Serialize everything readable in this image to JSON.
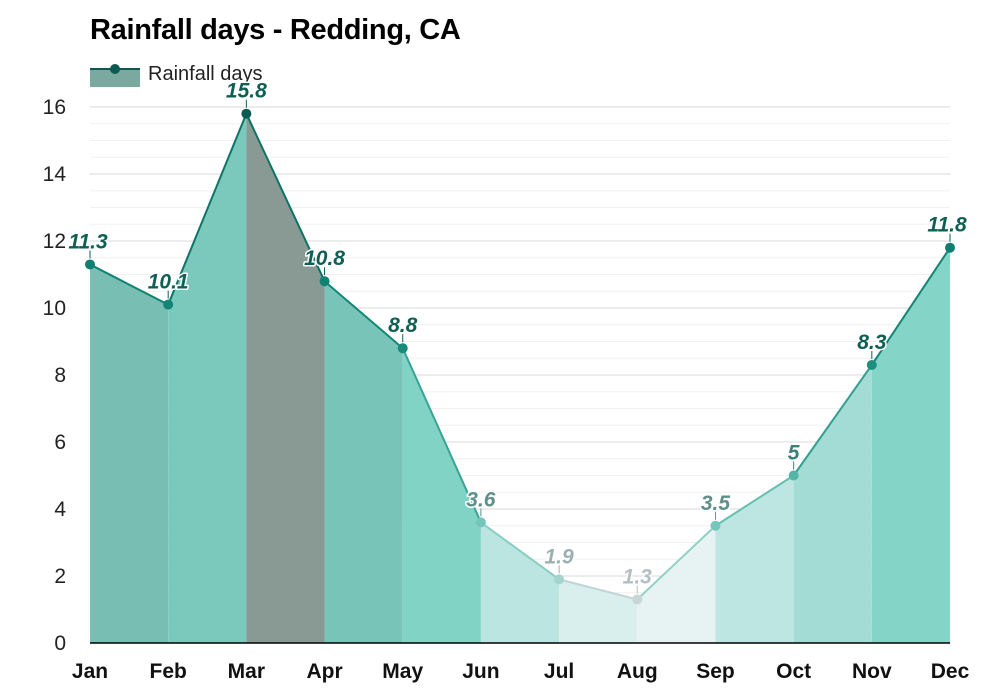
{
  "chart_data": {
    "type": "area",
    "title": "Rainfall days - Redding, CA",
    "xlabel": "",
    "ylabel": "",
    "categories": [
      "Jan",
      "Feb",
      "Mar",
      "Apr",
      "May",
      "Jun",
      "Jul",
      "Aug",
      "Sep",
      "Oct",
      "Nov",
      "Dec"
    ],
    "series": [
      {
        "name": "Rainfall days",
        "values": [
          11.3,
          10.1,
          15.8,
          10.8,
          8.8,
          3.6,
          1.9,
          1.3,
          3.5,
          5,
          8.3,
          11.8
        ]
      }
    ],
    "data_labels": [
      "11.3",
      "10.1",
      "15.8",
      "10.8",
      "8.8",
      "3.6",
      "1.9",
      "1.3",
      "3.5",
      "5",
      "8.3",
      "11.8"
    ],
    "y_ticks": [
      "0",
      "2",
      "4",
      "6",
      "8",
      "10",
      "12",
      "14",
      "16"
    ],
    "ylim": [
      0,
      16
    ],
    "grid": true,
    "legend": {
      "placement": "top-left",
      "label": "Rainfall days"
    },
    "colors": {
      "line": "#0c7d6e",
      "marker": "#0c7d6e",
      "legend_swatch": "#7aa9a0",
      "legend_line": "#0d5a52"
    }
  }
}
